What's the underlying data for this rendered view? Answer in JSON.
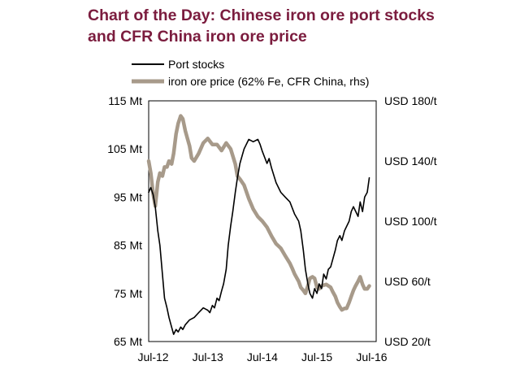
{
  "colors": {
    "title": "#7b1c3e",
    "port_stocks": "#000000",
    "iron_ore_price": "#a79a8a"
  },
  "chart_data": {
    "type": "line",
    "title": "Chart of the Day: Chinese iron ore port stocks and CFR China iron ore price",
    "title_lines": [
      "Chart of the Day: Chinese iron ore port stocks",
      "and CFR China iron ore price"
    ],
    "x_ticks": [
      "Jul-12",
      "Jul-13",
      "Jul-14",
      "Jul-15",
      "Jul-16"
    ],
    "y_left": {
      "ticks": [
        "115 Mt",
        "105 Mt",
        "95 Mt",
        "85 Mt",
        "75 Mt",
        "65 Mt"
      ],
      "range": [
        65,
        115
      ]
    },
    "y_right": {
      "ticks": [
        "USD 180/t",
        "USD 140/t",
        "USD 100/t",
        "USD 60/t",
        "USD 20/t"
      ],
      "range": [
        20,
        180
      ]
    },
    "legend": {
      "position": "top-left"
    },
    "grid": false,
    "series": [
      {
        "name": "Port stocks",
        "axis": "left",
        "points": [
          [
            "2012-06-01",
            96.0
          ],
          [
            "2012-06-15",
            97.0
          ],
          [
            "2012-07-01",
            95.5
          ],
          [
            "2012-07-15",
            93.0
          ],
          [
            "2012-08-01",
            88.0
          ],
          [
            "2012-08-15",
            85.0
          ],
          [
            "2012-09-01",
            79.0
          ],
          [
            "2012-09-15",
            74.0
          ],
          [
            "2012-10-01",
            72.0
          ],
          [
            "2012-10-15",
            70.0
          ],
          [
            "2012-11-01",
            68.0
          ],
          [
            "2012-11-15",
            66.5
          ],
          [
            "2012-12-01",
            67.5
          ],
          [
            "2012-12-15",
            67.0
          ],
          [
            "2013-01-01",
            68.0
          ],
          [
            "2013-01-15",
            67.5
          ],
          [
            "2013-02-01",
            68.5
          ],
          [
            "2013-03-01",
            69.5
          ],
          [
            "2013-04-01",
            70.0
          ],
          [
            "2013-05-01",
            71.0
          ],
          [
            "2013-06-01",
            72.0
          ],
          [
            "2013-07-01",
            71.5
          ],
          [
            "2013-07-15",
            71.0
          ],
          [
            "2013-08-01",
            72.5
          ],
          [
            "2013-08-15",
            72.0
          ],
          [
            "2013-09-01",
            74.0
          ],
          [
            "2013-09-15",
            73.5
          ],
          [
            "2013-10-01",
            75.5
          ],
          [
            "2013-10-15",
            77.0
          ],
          [
            "2013-11-01",
            80.0
          ],
          [
            "2013-11-15",
            85.0
          ],
          [
            "2013-12-01",
            89.0
          ],
          [
            "2013-12-15",
            92.0
          ],
          [
            "2014-01-01",
            96.0
          ],
          [
            "2014-01-15",
            99.0
          ],
          [
            "2014-02-01",
            102.0
          ],
          [
            "2014-03-01",
            105.0
          ],
          [
            "2014-04-01",
            107.0
          ],
          [
            "2014-05-01",
            106.5
          ],
          [
            "2014-06-01",
            107.0
          ],
          [
            "2014-06-15",
            106.0
          ],
          [
            "2014-07-01",
            104.5
          ],
          [
            "2014-08-01",
            102.0
          ],
          [
            "2014-08-15",
            103.0
          ],
          [
            "2014-09-01",
            101.0
          ],
          [
            "2014-10-01",
            98.0
          ],
          [
            "2014-11-01",
            96.0
          ],
          [
            "2014-12-01",
            95.0
          ],
          [
            "2015-01-01",
            94.0
          ],
          [
            "2015-02-01",
            91.5
          ],
          [
            "2015-03-01",
            90.0
          ],
          [
            "2015-03-15",
            88.0
          ],
          [
            "2015-04-01",
            84.0
          ],
          [
            "2015-04-15",
            80.0
          ],
          [
            "2015-05-01",
            77.0
          ],
          [
            "2015-05-15",
            75.0
          ],
          [
            "2015-06-01",
            74.0
          ],
          [
            "2015-06-15",
            76.0
          ],
          [
            "2015-07-01",
            75.0
          ],
          [
            "2015-07-15",
            77.0
          ],
          [
            "2015-08-01",
            76.0
          ],
          [
            "2015-08-15",
            79.0
          ],
          [
            "2015-09-01",
            78.0
          ],
          [
            "2015-09-15",
            80.0
          ],
          [
            "2015-10-01",
            80.5
          ],
          [
            "2015-11-01",
            84.0
          ],
          [
            "2015-11-15",
            86.0
          ],
          [
            "2015-12-01",
            87.0
          ],
          [
            "2015-12-15",
            86.0
          ],
          [
            "2016-01-01",
            88.0
          ],
          [
            "2016-02-01",
            90.0
          ],
          [
            "2016-02-15",
            92.0
          ],
          [
            "2016-03-01",
            93.0
          ],
          [
            "2016-04-01",
            91.0
          ],
          [
            "2016-04-15",
            94.0
          ],
          [
            "2016-05-01",
            92.0
          ],
          [
            "2016-05-15",
            95.0
          ],
          [
            "2016-06-01",
            96.0
          ],
          [
            "2016-06-15",
            99.0
          ]
        ]
      },
      {
        "name": "iron ore price (62% Fe, CFR China, rhs)",
        "axis": "right",
        "points": [
          [
            "2012-06-01",
            140
          ],
          [
            "2012-06-15",
            132
          ],
          [
            "2012-07-01",
            118
          ],
          [
            "2012-07-15",
            110
          ],
          [
            "2012-08-01",
            126
          ],
          [
            "2012-08-15",
            132
          ],
          [
            "2012-09-01",
            130
          ],
          [
            "2012-09-15",
            136
          ],
          [
            "2012-10-01",
            136
          ],
          [
            "2012-10-15",
            140
          ],
          [
            "2012-11-01",
            138
          ],
          [
            "2012-11-15",
            145
          ],
          [
            "2012-12-01",
            158
          ],
          [
            "2012-12-15",
            165
          ],
          [
            "2013-01-01",
            170
          ],
          [
            "2013-01-15",
            168
          ],
          [
            "2013-02-01",
            160
          ],
          [
            "2013-02-15",
            155
          ],
          [
            "2013-03-01",
            150
          ],
          [
            "2013-03-15",
            142
          ],
          [
            "2013-04-01",
            140
          ],
          [
            "2013-05-01",
            145
          ],
          [
            "2013-06-01",
            152
          ],
          [
            "2013-07-01",
            155
          ],
          [
            "2013-08-01",
            151
          ],
          [
            "2013-09-01",
            151
          ],
          [
            "2013-10-01",
            147
          ],
          [
            "2013-11-01",
            152
          ],
          [
            "2013-12-01",
            148
          ],
          [
            "2014-01-01",
            138
          ],
          [
            "2014-01-15",
            130
          ],
          [
            "2014-02-01",
            128
          ],
          [
            "2014-03-01",
            124
          ],
          [
            "2014-04-01",
            115
          ],
          [
            "2014-05-01",
            108
          ],
          [
            "2014-06-01",
            103
          ],
          [
            "2014-07-01",
            100
          ],
          [
            "2014-08-01",
            96
          ],
          [
            "2014-09-01",
            90
          ],
          [
            "2014-10-01",
            85
          ],
          [
            "2014-11-01",
            82
          ],
          [
            "2014-12-01",
            77
          ],
          [
            "2015-01-01",
            72
          ],
          [
            "2015-01-15",
            69
          ],
          [
            "2015-02-01",
            65
          ],
          [
            "2015-03-01",
            60
          ],
          [
            "2015-03-15",
            56
          ],
          [
            "2015-04-01",
            54
          ],
          [
            "2015-04-15",
            52
          ],
          [
            "2015-05-01",
            57
          ],
          [
            "2015-05-15",
            62
          ],
          [
            "2015-06-01",
            63
          ],
          [
            "2015-06-15",
            62
          ],
          [
            "2015-07-01",
            56
          ],
          [
            "2015-07-15",
            55
          ],
          [
            "2015-08-01",
            57
          ],
          [
            "2015-09-01",
            58
          ],
          [
            "2015-10-01",
            56
          ],
          [
            "2015-10-15",
            53
          ],
          [
            "2015-11-01",
            50
          ],
          [
            "2015-11-15",
            46
          ],
          [
            "2015-12-01",
            43
          ],
          [
            "2015-12-15",
            41
          ],
          [
            "2016-01-01",
            42
          ],
          [
            "2016-01-15",
            42
          ],
          [
            "2016-02-01",
            46
          ],
          [
            "2016-02-15",
            50
          ],
          [
            "2016-03-01",
            54
          ],
          [
            "2016-03-15",
            57
          ],
          [
            "2016-04-01",
            60
          ],
          [
            "2016-04-15",
            63
          ],
          [
            "2016-05-01",
            58
          ],
          [
            "2016-05-15",
            55
          ],
          [
            "2016-06-01",
            55
          ],
          [
            "2016-06-15",
            57
          ]
        ]
      }
    ]
  }
}
